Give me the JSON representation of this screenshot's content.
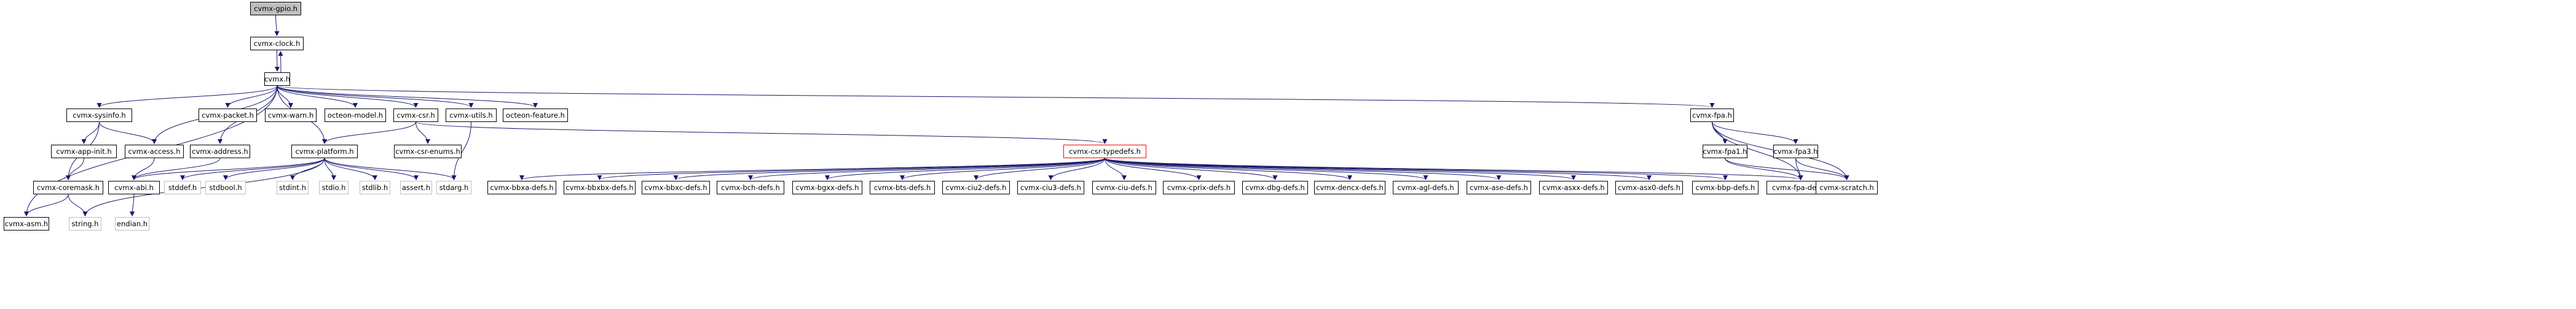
{
  "graph": {
    "colors": {
      "edge": "#191970",
      "node_border": "#000000",
      "root_fill": "#bfbfbf",
      "system_border": "#bfbfbf",
      "highlight_border": "#ff0000"
    },
    "nodes": [
      {
        "id": "gpio",
        "label": "cvmx-gpio.h",
        "kind": "root"
      },
      {
        "id": "clock",
        "label": "cvmx-clock.h",
        "kind": "local"
      },
      {
        "id": "cvmx",
        "label": "cvmx.h",
        "kind": "local"
      },
      {
        "id": "sysinfo",
        "label": "cvmx-sysinfo.h",
        "kind": "local"
      },
      {
        "id": "packet",
        "label": "cvmx-packet.h",
        "kind": "local"
      },
      {
        "id": "warn",
        "label": "cvmx-warn.h",
        "kind": "local"
      },
      {
        "id": "octeonmodel",
        "label": "octeon-model.h",
        "kind": "local"
      },
      {
        "id": "csr",
        "label": "cvmx-csr.h",
        "kind": "local"
      },
      {
        "id": "utils",
        "label": "cvmx-utils.h",
        "kind": "local"
      },
      {
        "id": "octeonfeature",
        "label": "octeon-feature.h",
        "kind": "local"
      },
      {
        "id": "fpa",
        "label": "cvmx-fpa.h",
        "kind": "local"
      },
      {
        "id": "appinit",
        "label": "cvmx-app-init.h",
        "kind": "local"
      },
      {
        "id": "access",
        "label": "cvmx-access.h",
        "kind": "local"
      },
      {
        "id": "address",
        "label": "cvmx-address.h",
        "kind": "local"
      },
      {
        "id": "platform",
        "label": "cvmx-platform.h",
        "kind": "local"
      },
      {
        "id": "csrenums",
        "label": "cvmx-csr-enums.h",
        "kind": "local"
      },
      {
        "id": "csrtypedefs",
        "label": "cvmx-csr-typedefs.h",
        "kind": "highlight"
      },
      {
        "id": "fpa1",
        "label": "cvmx-fpa1.h",
        "kind": "local"
      },
      {
        "id": "fpa3",
        "label": "cvmx-fpa3.h",
        "kind": "local"
      },
      {
        "id": "coremask",
        "label": "cvmx-coremask.h",
        "kind": "local"
      },
      {
        "id": "abi",
        "label": "cvmx-abi.h",
        "kind": "local"
      },
      {
        "id": "stddef",
        "label": "stddef.h",
        "kind": "system"
      },
      {
        "id": "stdbool",
        "label": "stdbool.h",
        "kind": "system"
      },
      {
        "id": "stdint",
        "label": "stdint.h",
        "kind": "system"
      },
      {
        "id": "stdio",
        "label": "stdio.h",
        "kind": "system"
      },
      {
        "id": "stdlib",
        "label": "stdlib.h",
        "kind": "system"
      },
      {
        "id": "assert",
        "label": "assert.h",
        "kind": "system"
      },
      {
        "id": "stdarg",
        "label": "stdarg.h",
        "kind": "system"
      },
      {
        "id": "bbxa",
        "label": "cvmx-bbxa-defs.h",
        "kind": "local"
      },
      {
        "id": "bbxbx",
        "label": "cvmx-bbxbx-defs.h",
        "kind": "local"
      },
      {
        "id": "bbxc",
        "label": "cvmx-bbxc-defs.h",
        "kind": "local"
      },
      {
        "id": "bch",
        "label": "cvmx-bch-defs.h",
        "kind": "local"
      },
      {
        "id": "bgxx",
        "label": "cvmx-bgxx-defs.h",
        "kind": "local"
      },
      {
        "id": "bts",
        "label": "cvmx-bts-defs.h",
        "kind": "local"
      },
      {
        "id": "ciu2",
        "label": "cvmx-ciu2-defs.h",
        "kind": "local"
      },
      {
        "id": "ciu3",
        "label": "cvmx-ciu3-defs.h",
        "kind": "local"
      },
      {
        "id": "ciu",
        "label": "cvmx-ciu-defs.h",
        "kind": "local"
      },
      {
        "id": "cprix",
        "label": "cvmx-cprix-defs.h",
        "kind": "local"
      },
      {
        "id": "dbg",
        "label": "cvmx-dbg-defs.h",
        "kind": "local"
      },
      {
        "id": "dencx",
        "label": "cvmx-dencx-defs.h",
        "kind": "local"
      },
      {
        "id": "agl",
        "label": "cvmx-agl-defs.h",
        "kind": "local"
      },
      {
        "id": "ase",
        "label": "cvmx-ase-defs.h",
        "kind": "local"
      },
      {
        "id": "asxx",
        "label": "cvmx-asxx-defs.h",
        "kind": "local"
      },
      {
        "id": "asx0",
        "label": "cvmx-asx0-defs.h",
        "kind": "local"
      },
      {
        "id": "bbp",
        "label": "cvmx-bbp-defs.h",
        "kind": "local"
      },
      {
        "id": "fpadefs",
        "label": "cvmx-fpa-defs.h",
        "kind": "local"
      },
      {
        "id": "scratch",
        "label": "cvmx-scratch.h",
        "kind": "local"
      },
      {
        "id": "asm",
        "label": "cvmx-asm.h",
        "kind": "local"
      },
      {
        "id": "string",
        "label": "string.h",
        "kind": "system"
      },
      {
        "id": "endian",
        "label": "endian.h",
        "kind": "system"
      }
    ],
    "edges": [
      [
        "gpio",
        "clock"
      ],
      [
        "clock",
        "cvmx"
      ],
      [
        "cvmx",
        "clock"
      ],
      [
        "cvmx",
        "sysinfo"
      ],
      [
        "cvmx",
        "packet"
      ],
      [
        "cvmx",
        "warn"
      ],
      [
        "cvmx",
        "octeonmodel"
      ],
      [
        "cvmx",
        "csr"
      ],
      [
        "cvmx",
        "utils"
      ],
      [
        "cvmx",
        "octeonfeature"
      ],
      [
        "cvmx",
        "fpa"
      ],
      [
        "cvmx",
        "access"
      ],
      [
        "cvmx",
        "address"
      ],
      [
        "cvmx",
        "platform"
      ],
      [
        "cvmx",
        "asm"
      ],
      [
        "sysinfo",
        "appinit"
      ],
      [
        "sysinfo",
        "access"
      ],
      [
        "sysinfo",
        "coremask"
      ],
      [
        "appinit",
        "coremask"
      ],
      [
        "coremask",
        "asm"
      ],
      [
        "coremask",
        "string"
      ],
      [
        "address",
        "abi"
      ],
      [
        "access",
        "abi"
      ],
      [
        "abi",
        "endian"
      ],
      [
        "csr",
        "platform"
      ],
      [
        "csr",
        "csrenums"
      ],
      [
        "csr",
        "csrtypedefs"
      ],
      [
        "utils",
        "stdarg"
      ],
      [
        "platform",
        "abi"
      ],
      [
        "platform",
        "stddef"
      ],
      [
        "platform",
        "stdbool"
      ],
      [
        "platform",
        "stdint"
      ],
      [
        "platform",
        "stdio"
      ],
      [
        "platform",
        "stdlib"
      ],
      [
        "platform",
        "assert"
      ],
      [
        "platform",
        "stdarg"
      ],
      [
        "platform",
        "string"
      ],
      [
        "csrtypedefs",
        "bbxa"
      ],
      [
        "csrtypedefs",
        "bbxbx"
      ],
      [
        "csrtypedefs",
        "bbxc"
      ],
      [
        "csrtypedefs",
        "bch"
      ],
      [
        "csrtypedefs",
        "bgxx"
      ],
      [
        "csrtypedefs",
        "bts"
      ],
      [
        "csrtypedefs",
        "ciu2"
      ],
      [
        "csrtypedefs",
        "ciu3"
      ],
      [
        "csrtypedefs",
        "ciu"
      ],
      [
        "csrtypedefs",
        "cprix"
      ],
      [
        "csrtypedefs",
        "dbg"
      ],
      [
        "csrtypedefs",
        "dencx"
      ],
      [
        "csrtypedefs",
        "agl"
      ],
      [
        "csrtypedefs",
        "ase"
      ],
      [
        "csrtypedefs",
        "asxx"
      ],
      [
        "csrtypedefs",
        "asx0"
      ],
      [
        "csrtypedefs",
        "bbp"
      ],
      [
        "csrtypedefs",
        "fpadefs"
      ],
      [
        "fpa",
        "fpa1"
      ],
      [
        "fpa",
        "fpa3"
      ],
      [
        "fpa",
        "fpadefs"
      ],
      [
        "fpa",
        "scratch"
      ],
      [
        "fpa1",
        "fpadefs"
      ],
      [
        "fpa1",
        "scratch"
      ],
      [
        "fpa3",
        "fpadefs"
      ],
      [
        "fpa3",
        "scratch"
      ]
    ]
  }
}
